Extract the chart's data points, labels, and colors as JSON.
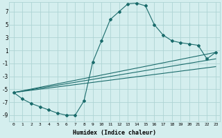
{
  "xlabel": "Humidex (Indice chaleur)",
  "ylabel": "",
  "bg_color": "#d4eeee",
  "grid_color": "#aed4d4",
  "line_color": "#1a6b6b",
  "xlim": [
    -0.5,
    23.5
  ],
  "ylim": [
    -10,
    8.5
  ],
  "yticks": [
    -9,
    -7,
    -5,
    -3,
    -1,
    1,
    3,
    5,
    7
  ],
  "xticks": [
    0,
    1,
    2,
    3,
    4,
    5,
    6,
    7,
    8,
    9,
    10,
    11,
    12,
    13,
    14,
    15,
    16,
    17,
    18,
    19,
    20,
    21,
    22,
    23
  ],
  "series1_x": [
    0,
    1,
    2,
    3,
    4,
    5,
    6,
    7,
    8,
    9,
    10,
    11,
    12,
    13,
    14,
    15,
    16,
    17,
    18,
    19,
    20,
    21,
    22,
    23
  ],
  "series1_y": [
    -5.5,
    -6.5,
    -7.2,
    -7.7,
    -8.2,
    -8.7,
    -9.0,
    -9.0,
    -6.8,
    -0.8,
    2.5,
    5.8,
    7.0,
    8.2,
    8.3,
    7.9,
    5.0,
    3.4,
    2.5,
    2.2,
    2.0,
    1.8,
    -0.3,
    0.7
  ],
  "series2_x": [
    0,
    23
  ],
  "series2_y": [
    -5.5,
    0.7
  ],
  "series3_x": [
    0,
    23
  ],
  "series3_y": [
    -5.5,
    -0.3
  ],
  "series4_x": [
    0,
    23
  ],
  "series4_y": [
    -5.5,
    -1.5
  ]
}
